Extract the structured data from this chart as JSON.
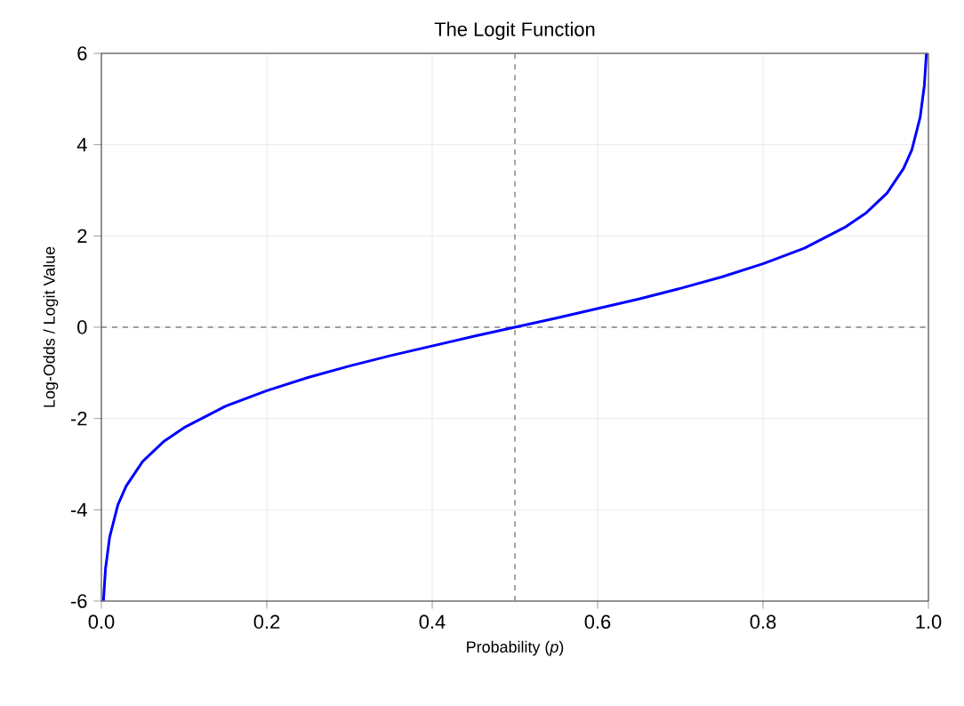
{
  "chart_data": {
    "type": "line",
    "title": "The Logit Function",
    "xlabel": "Probability (*p*)",
    "ylabel": "Log-Odds / Logit Value",
    "x": [
      0.0025,
      0.005,
      0.01,
      0.02,
      0.03,
      0.05,
      0.075,
      0.1,
      0.15,
      0.2,
      0.25,
      0.3,
      0.35,
      0.4,
      0.45,
      0.5,
      0.55,
      0.6,
      0.65,
      0.7,
      0.75,
      0.8,
      0.85,
      0.9,
      0.925,
      0.95,
      0.97,
      0.98,
      0.99,
      0.995,
      0.9975
    ],
    "series": [
      {
        "color": "#0000ff",
        "values": [
          -5.99,
          -5.29,
          -4.6,
          -3.89,
          -3.48,
          -2.94,
          -2.51,
          -2.2,
          -1.73,
          -1.39,
          -1.1,
          -0.85,
          -0.62,
          -0.41,
          -0.2,
          0,
          0.2,
          0.41,
          0.62,
          0.85,
          1.1,
          1.39,
          1.73,
          2.2,
          2.51,
          2.94,
          3.48,
          3.89,
          4.6,
          5.29,
          5.99
        ]
      }
    ],
    "xlim": [
      0,
      1
    ],
    "ylim": [
      -6,
      6
    ],
    "xticks": [
      {
        "value": 0,
        "label": "0.0"
      },
      0.2,
      0.4,
      0.6,
      0.8,
      {
        "value": 1,
        "label": "1.0"
      }
    ],
    "yticks": [
      -6,
      -4,
      -2,
      0,
      2,
      4,
      6
    ],
    "grid": true,
    "line_style": "solid",
    "marker": "none",
    "ref_lines": [
      {
        "axis": "x",
        "value": 0.5,
        "color": "#808080",
        "line_style": "dashed"
      },
      {
        "axis": "y",
        "value": 0,
        "color": "#808080",
        "line_style": "dashed"
      }
    ]
  }
}
